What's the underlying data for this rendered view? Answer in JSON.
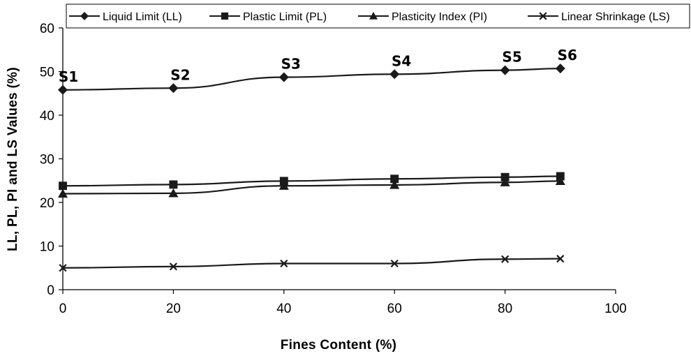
{
  "chart_data": {
    "type": "line",
    "title": "",
    "xlabel": "Fines Content (%)",
    "ylabel": "LL, PL, PI and LS Values (%)",
    "xlim": [
      0,
      100
    ],
    "ylim": [
      0,
      60
    ],
    "xticks": [
      0,
      20,
      40,
      60,
      80,
      100
    ],
    "yticks": [
      0,
      10,
      20,
      30,
      40,
      50,
      60
    ],
    "grid": false,
    "legend_position": "top",
    "x": [
      0,
      20,
      40,
      60,
      80,
      90
    ],
    "point_labels": [
      "S1",
      "S2",
      "S3",
      "S4",
      "S5",
      "S6"
    ],
    "series": [
      {
        "name": "Liquid Limit (LL)",
        "marker": "diamond",
        "color": "#1a1a1a",
        "values": [
          45.8,
          46.2,
          48.7,
          49.4,
          50.3,
          50.7
        ]
      },
      {
        "name": "Plastic Limit (PL)",
        "marker": "square",
        "color": "#1a1a1a",
        "values": [
          23.8,
          24.1,
          24.9,
          25.4,
          25.8,
          26.0
        ]
      },
      {
        "name": "Plasticity Index (PI)",
        "marker": "triangle",
        "color": "#1a1a1a",
        "values": [
          22.0,
          22.1,
          23.8,
          24.0,
          24.6,
          24.9
        ]
      },
      {
        "name": "Linear Shrinkage (LS)",
        "marker": "x",
        "color": "#1a1a1a",
        "values": [
          5.0,
          5.3,
          6.0,
          6.0,
          7.0,
          7.1
        ]
      }
    ]
  }
}
